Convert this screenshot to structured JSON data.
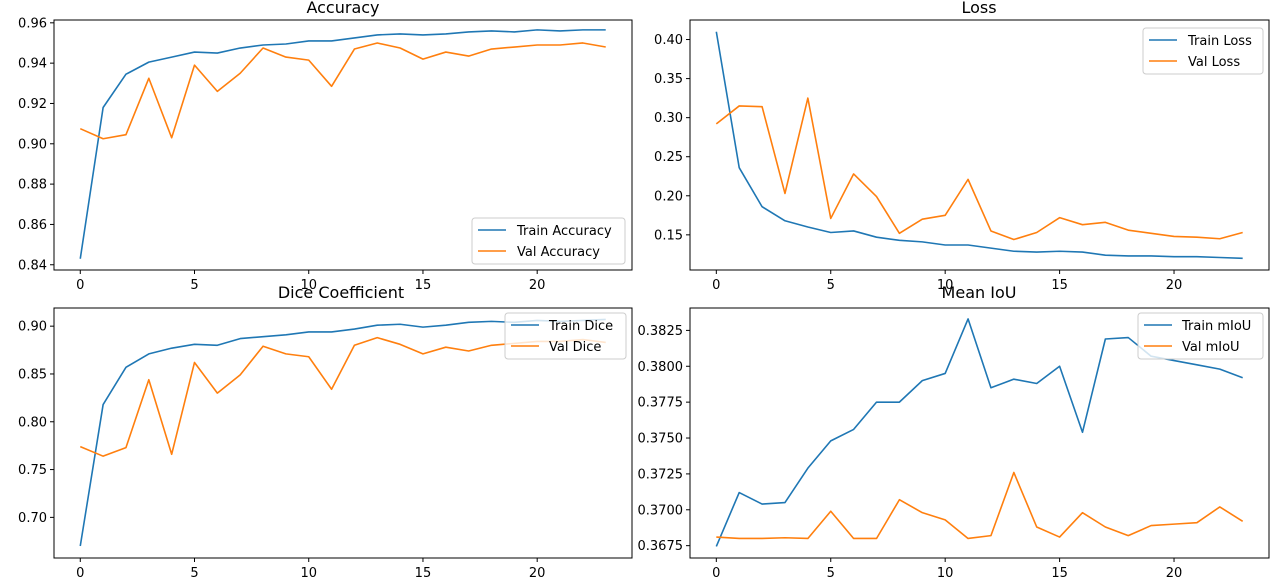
{
  "colors": {
    "train": "#1f77b4",
    "val": "#ff7f0e"
  },
  "chart_data": [
    {
      "type": "line",
      "title": "Accuracy",
      "x": [
        0,
        1,
        2,
        3,
        4,
        5,
        6,
        7,
        8,
        9,
        10,
        11,
        12,
        13,
        14,
        15,
        16,
        17,
        18,
        19,
        20,
        21,
        22,
        23
      ],
      "xlim": [
        -1.15,
        24.15
      ],
      "ylim": [
        0.8374,
        0.9614
      ],
      "xticks": [
        0,
        5,
        10,
        15,
        20
      ],
      "yticks": [
        0.84,
        0.86,
        0.88,
        0.9,
        0.92,
        0.94,
        0.96
      ],
      "ytick_labels": [
        "0.84",
        "0.86",
        "0.88",
        "0.90",
        "0.92",
        "0.94",
        "0.96"
      ],
      "legend_placement": "lower right",
      "grid": false,
      "series": [
        {
          "name": "Train Accuracy",
          "color": "#1f77b4",
          "values": [
            0.843,
            0.918,
            0.9345,
            0.9405,
            0.943,
            0.9455,
            0.945,
            0.9475,
            0.949,
            0.9495,
            0.951,
            0.951,
            0.9525,
            0.954,
            0.9545,
            0.954,
            0.9545,
            0.9555,
            0.956,
            0.9555,
            0.9565,
            0.956,
            0.9565,
            0.9565
          ]
        },
        {
          "name": "Val Accuracy",
          "color": "#ff7f0e",
          "values": [
            0.9075,
            0.9025,
            0.9045,
            0.9325,
            0.903,
            0.939,
            0.926,
            0.935,
            0.9475,
            0.943,
            0.9415,
            0.9285,
            0.947,
            0.95,
            0.9475,
            0.942,
            0.9455,
            0.9435,
            0.947,
            0.948,
            0.949,
            0.949,
            0.95,
            0.948
          ]
        }
      ]
    },
    {
      "type": "line",
      "title": "Loss",
      "x": [
        0,
        1,
        2,
        3,
        4,
        5,
        6,
        7,
        8,
        9,
        10,
        11,
        12,
        13,
        14,
        15,
        16,
        17,
        18,
        19,
        20,
        21,
        22,
        23
      ],
      "xlim": [
        -1.15,
        24.15
      ],
      "ylim": [
        0.105,
        0.425
      ],
      "xticks": [
        0,
        5,
        10,
        15,
        20
      ],
      "yticks": [
        0.15,
        0.2,
        0.25,
        0.3,
        0.35,
        0.4
      ],
      "ytick_labels": [
        "0.15",
        "0.20",
        "0.25",
        "0.30",
        "0.35",
        "0.40"
      ],
      "legend_placement": "upper right",
      "grid": false,
      "series": [
        {
          "name": "Train Loss",
          "color": "#1f77b4",
          "values": [
            0.41,
            0.236,
            0.186,
            0.168,
            0.16,
            0.153,
            0.155,
            0.147,
            0.143,
            0.141,
            0.137,
            0.137,
            0.133,
            0.129,
            0.128,
            0.129,
            0.128,
            0.124,
            0.123,
            0.123,
            0.122,
            0.122,
            0.121,
            0.12
          ]
        },
        {
          "name": "Val Loss",
          "color": "#ff7f0e",
          "values": [
            0.292,
            0.315,
            0.314,
            0.203,
            0.325,
            0.171,
            0.228,
            0.199,
            0.152,
            0.17,
            0.175,
            0.221,
            0.155,
            0.144,
            0.153,
            0.172,
            0.163,
            0.166,
            0.156,
            0.152,
            0.148,
            0.147,
            0.145,
            0.153
          ]
        }
      ]
    },
    {
      "type": "line",
      "title": "Dice Coefficient",
      "x": [
        0,
        1,
        2,
        3,
        4,
        5,
        6,
        7,
        8,
        9,
        10,
        11,
        12,
        13,
        14,
        15,
        16,
        17,
        18,
        19,
        20,
        21,
        22,
        23
      ],
      "xlim": [
        -1.15,
        24.15
      ],
      "ylim": [
        0.6575,
        0.919
      ],
      "xticks": [
        0,
        5,
        10,
        15,
        20
      ],
      "yticks": [
        0.7,
        0.75,
        0.8,
        0.85,
        0.9
      ],
      "ytick_labels": [
        "0.70",
        "0.75",
        "0.80",
        "0.85",
        "0.90"
      ],
      "legend_placement": "upper right",
      "grid": false,
      "series": [
        {
          "name": "Train Dice",
          "color": "#1f77b4",
          "values": [
            0.67,
            0.818,
            0.857,
            0.871,
            0.877,
            0.881,
            0.88,
            0.887,
            0.889,
            0.891,
            0.894,
            0.894,
            0.897,
            0.901,
            0.902,
            0.899,
            0.901,
            0.904,
            0.905,
            0.904,
            0.906,
            0.905,
            0.906,
            0.907
          ]
        },
        {
          "name": "Val Dice",
          "color": "#ff7f0e",
          "values": [
            0.774,
            0.764,
            0.773,
            0.844,
            0.766,
            0.862,
            0.83,
            0.849,
            0.879,
            0.871,
            0.868,
            0.834,
            0.88,
            0.888,
            0.881,
            0.871,
            0.878,
            0.874,
            0.88,
            0.882,
            0.884,
            0.884,
            0.886,
            0.883
          ]
        }
      ]
    },
    {
      "type": "line",
      "title": "Mean IoU",
      "x": [
        0,
        1,
        2,
        3,
        4,
        5,
        6,
        7,
        8,
        9,
        10,
        11,
        12,
        13,
        14,
        15,
        16,
        17,
        18,
        19,
        20,
        21,
        22,
        23
      ],
      "xlim": [
        -1.15,
        24.15
      ],
      "ylim": [
        0.36664,
        0.38406
      ],
      "xticks": [
        0,
        5,
        10,
        15,
        20
      ],
      "yticks": [
        0.3675,
        0.37,
        0.3725,
        0.375,
        0.3775,
        0.38,
        0.3825
      ],
      "ytick_labels": [
        "0.3675",
        "0.3700",
        "0.3725",
        "0.3750",
        "0.3775",
        "0.3800",
        "0.3825"
      ],
      "legend_placement": "upper right",
      "grid": false,
      "series": [
        {
          "name": "Train mIoU",
          "color": "#1f77b4",
          "values": [
            0.36745,
            0.3712,
            0.3704,
            0.3705,
            0.3729,
            0.3748,
            0.3756,
            0.3775,
            0.3775,
            0.379,
            0.3795,
            0.3833,
            0.3785,
            0.3791,
            0.3788,
            0.38,
            0.3754,
            0.3819,
            0.382,
            0.3807,
            0.3804,
            0.3801,
            0.3798,
            0.3792
          ]
        },
        {
          "name": "Val mIoU",
          "color": "#ff7f0e",
          "values": [
            0.3681,
            0.368,
            0.368,
            0.36805,
            0.368,
            0.3699,
            0.368,
            0.368,
            0.3707,
            0.3698,
            0.3693,
            0.368,
            0.3682,
            0.3726,
            0.3688,
            0.3681,
            0.3698,
            0.3688,
            0.3682,
            0.3689,
            0.369,
            0.3691,
            0.3702,
            0.3692
          ]
        }
      ]
    }
  ]
}
